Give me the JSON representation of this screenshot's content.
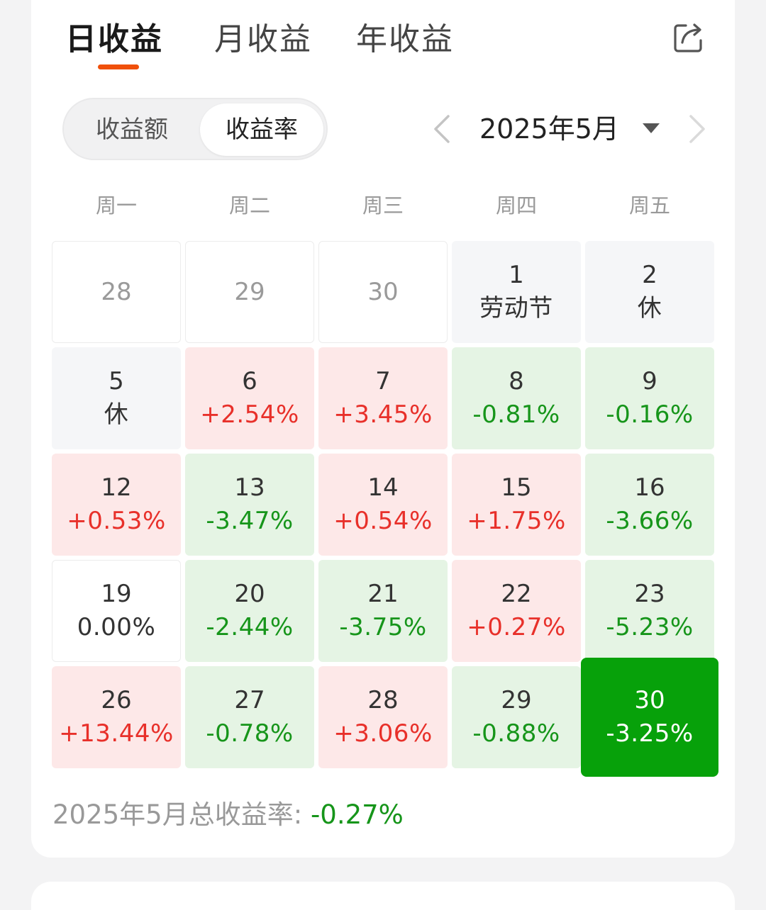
{
  "tabs": [
    {
      "label": "日收益",
      "active": true
    },
    {
      "label": "月收益",
      "active": false
    },
    {
      "label": "年收益",
      "active": false
    }
  ],
  "segment": {
    "left": "收益额",
    "right": "收益率",
    "selected": "right"
  },
  "month_picker": {
    "label": "2025年5月"
  },
  "weekdays": [
    "周一",
    "周二",
    "周三",
    "周四",
    "周五"
  ],
  "calendar": [
    [
      {
        "day": "28",
        "value": "",
        "status": "outside"
      },
      {
        "day": "29",
        "value": "",
        "status": "outside"
      },
      {
        "day": "30",
        "value": "",
        "status": "outside"
      },
      {
        "day": "1",
        "value": "劳动节",
        "status": "holiday"
      },
      {
        "day": "2",
        "value": "休",
        "status": "holiday"
      }
    ],
    [
      {
        "day": "5",
        "value": "休",
        "status": "holiday"
      },
      {
        "day": "6",
        "value": "+2.54%",
        "status": "up"
      },
      {
        "day": "7",
        "value": "+3.45%",
        "status": "up"
      },
      {
        "day": "8",
        "value": "-0.81%",
        "status": "down"
      },
      {
        "day": "9",
        "value": "-0.16%",
        "status": "down"
      }
    ],
    [
      {
        "day": "12",
        "value": "+0.53%",
        "status": "up"
      },
      {
        "day": "13",
        "value": "-3.47%",
        "status": "down"
      },
      {
        "day": "14",
        "value": "+0.54%",
        "status": "up"
      },
      {
        "day": "15",
        "value": "+1.75%",
        "status": "up"
      },
      {
        "day": "16",
        "value": "-3.66%",
        "status": "down"
      }
    ],
    [
      {
        "day": "19",
        "value": "0.00%",
        "status": "flat"
      },
      {
        "day": "20",
        "value": "-2.44%",
        "status": "down"
      },
      {
        "day": "21",
        "value": "-3.75%",
        "status": "down"
      },
      {
        "day": "22",
        "value": "+0.27%",
        "status": "up"
      },
      {
        "day": "23",
        "value": "-5.23%",
        "status": "down"
      }
    ],
    [
      {
        "day": "26",
        "value": "+13.44%",
        "status": "up"
      },
      {
        "day": "27",
        "value": "-0.78%",
        "status": "down"
      },
      {
        "day": "28",
        "value": "+3.06%",
        "status": "up"
      },
      {
        "day": "29",
        "value": "-0.88%",
        "status": "down"
      },
      {
        "day": "30",
        "value": "-3.25%",
        "status": "selected"
      }
    ]
  ],
  "summary": {
    "label": "2025年5月总收益率: ",
    "value": "-0.27%"
  },
  "colors": {
    "accent": "#f0500a",
    "up": "#e8302a",
    "down": "#16951a",
    "selected": "#07a10a"
  },
  "icons": {
    "share": "share-icon",
    "prev": "chevron-left-icon",
    "next": "chevron-right-icon",
    "dropdown": "caret-down-icon"
  }
}
